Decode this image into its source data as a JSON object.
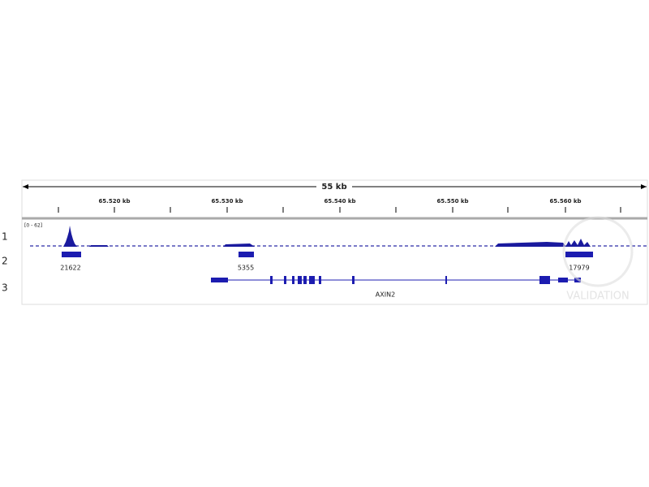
{
  "ruler": {
    "span": "55 kb",
    "ticks": [
      "65.520 kb",
      "65.530 kb",
      "65.540 kb",
      "65.550 kb",
      "65.560 kb"
    ]
  },
  "tracks": [
    {
      "index": "1",
      "range": "[0 - 62]"
    },
    {
      "index": "2",
      "peaks": [
        "21622",
        "5355",
        "17979"
      ]
    },
    {
      "index": "3",
      "gene": "AXIN2"
    }
  ],
  "watermark": "VALIDATION"
}
